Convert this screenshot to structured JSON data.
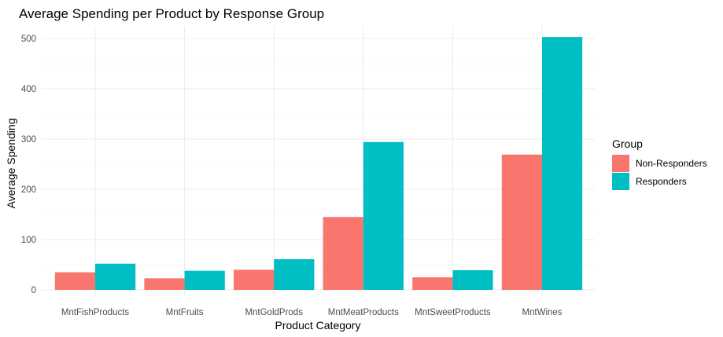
{
  "chart_data": {
    "type": "bar",
    "title": "Average Spending per Product by Response Group",
    "xlabel": "Product Category",
    "ylabel": "Average Spending",
    "categories": [
      "MntFishProducts",
      "MntFruits",
      "MntGoldProds",
      "MntMeatProducts",
      "MntSweetProducts",
      "MntWines"
    ],
    "series": [
      {
        "name": "Non-Responders",
        "color": "#F8766D",
        "values": [
          35,
          23,
          40,
          145,
          25,
          269
        ]
      },
      {
        "name": "Responders",
        "color": "#00BFC4",
        "values": [
          52,
          38,
          61,
          294,
          39,
          503
        ]
      }
    ],
    "ylim": [
      0,
      500
    ],
    "yticks": [
      0,
      100,
      200,
      300,
      400,
      500
    ],
    "grid": true,
    "legend": {
      "title": "Group",
      "position": "right"
    }
  }
}
